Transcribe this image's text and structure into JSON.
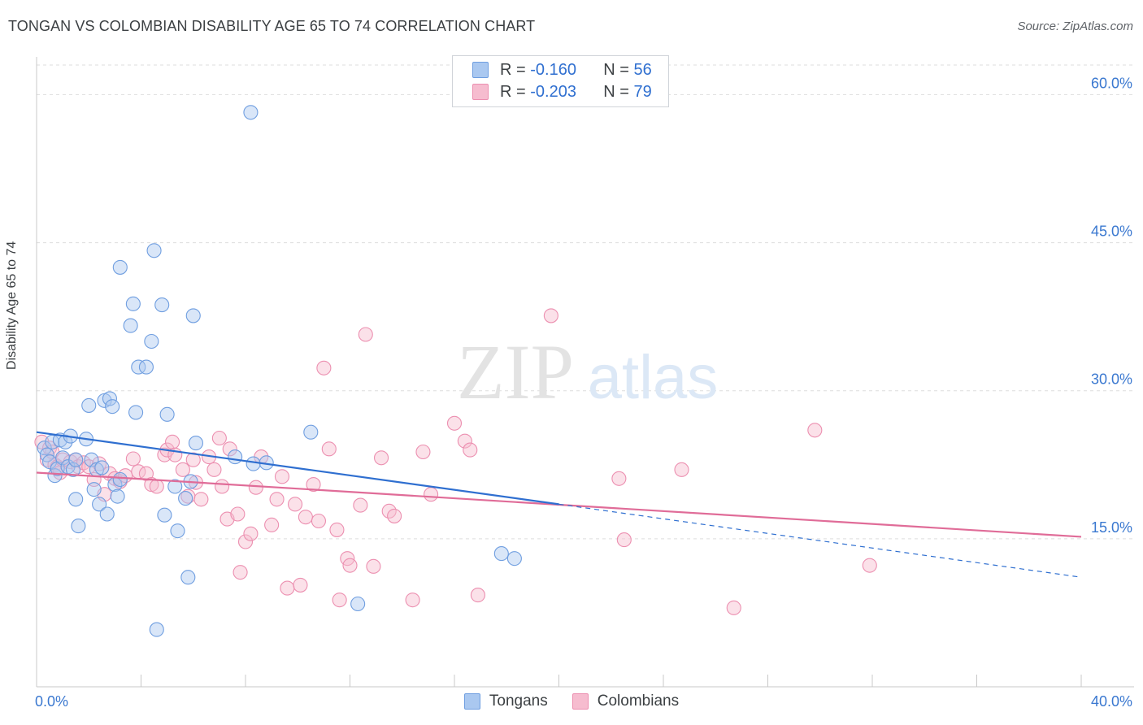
{
  "header": {
    "title": "TONGAN VS COLOMBIAN DISABILITY AGE 65 TO 74 CORRELATION CHART",
    "source": "Source: ZipAtlas.com"
  },
  "watermark": {
    "part1": "ZIP",
    "part2": "atlas"
  },
  "legend": {
    "rows": [
      {
        "r_label": "R =",
        "r_value": "-0.160",
        "n_label": "N =",
        "n_value": "56"
      },
      {
        "r_label": "R =",
        "r_value": "-0.203",
        "n_label": "N =",
        "n_value": "79"
      }
    ]
  },
  "colors": {
    "tongan_fill": "#aac8f0",
    "tongan_stroke": "#6f9ee0",
    "tongan_line": "#2f6fd0",
    "colombian_fill": "#f6bccf",
    "colombian_stroke": "#ec8fb0",
    "colombian_line": "#e06c98",
    "axis_tick_text": "#3a78d0",
    "grid": "#dddddd"
  },
  "chart_data": {
    "type": "scatter",
    "title": "TONGAN VS COLOMBIAN DISABILITY AGE 65 TO 74 CORRELATION CHART",
    "xlabel": "",
    "ylabel": "Disability Age 65 to 74",
    "xlim": [
      0,
      40
    ],
    "ylim": [
      0,
      63
    ],
    "x_tick_labels": [
      {
        "value": 0,
        "label": "0.0%"
      },
      {
        "value": 40,
        "label": "40.0%"
      }
    ],
    "y_tick_labels": [
      {
        "value": 15,
        "label": "15.0%"
      },
      {
        "value": 30,
        "label": "30.0%"
      },
      {
        "value": 45,
        "label": "45.0%"
      },
      {
        "value": 60,
        "label": "60.0%"
      }
    ],
    "grid": true,
    "legend_position": "top-center",
    "series": [
      {
        "name": "Tongans",
        "points": [
          [
            0.3,
            24.2
          ],
          [
            0.4,
            23.5
          ],
          [
            0.5,
            22.8
          ],
          [
            0.6,
            24.8
          ],
          [
            0.7,
            21.4
          ],
          [
            0.8,
            22.1
          ],
          [
            0.9,
            25.0
          ],
          [
            1.0,
            23.2
          ],
          [
            1.1,
            24.8
          ],
          [
            1.2,
            22.3
          ],
          [
            1.3,
            25.4
          ],
          [
            1.4,
            22.0
          ],
          [
            1.5,
            19.0
          ],
          [
            1.6,
            16.3
          ],
          [
            1.5,
            23.0
          ],
          [
            1.9,
            25.1
          ],
          [
            2.0,
            28.5
          ],
          [
            2.1,
            23.0
          ],
          [
            2.2,
            20.0
          ],
          [
            2.3,
            22.0
          ],
          [
            2.4,
            18.5
          ],
          [
            2.5,
            22.2
          ],
          [
            2.6,
            29.0
          ],
          [
            2.7,
            17.5
          ],
          [
            2.8,
            29.2
          ],
          [
            2.9,
            28.4
          ],
          [
            3.0,
            20.5
          ],
          [
            3.1,
            19.3
          ],
          [
            3.2,
            21.0
          ],
          [
            3.2,
            42.5
          ],
          [
            3.6,
            36.6
          ],
          [
            3.7,
            38.8
          ],
          [
            3.8,
            27.8
          ],
          [
            3.9,
            32.4
          ],
          [
            4.2,
            32.4
          ],
          [
            4.4,
            35.0
          ],
          [
            4.5,
            44.2
          ],
          [
            4.6,
            5.8
          ],
          [
            4.8,
            38.7
          ],
          [
            4.9,
            17.4
          ],
          [
            5.0,
            27.6
          ],
          [
            5.3,
            20.3
          ],
          [
            5.4,
            15.8
          ],
          [
            5.7,
            19.1
          ],
          [
            5.8,
            11.1
          ],
          [
            5.9,
            20.8
          ],
          [
            6.0,
            37.6
          ],
          [
            6.1,
            24.7
          ],
          [
            7.6,
            23.3
          ],
          [
            8.2,
            58.2
          ],
          [
            8.3,
            22.6
          ],
          [
            8.8,
            22.7
          ],
          [
            10.5,
            25.8
          ],
          [
            12.3,
            8.4
          ],
          [
            17.8,
            13.5
          ],
          [
            18.3,
            13.0
          ]
        ],
        "trend": {
          "x": [
            0,
            20
          ],
          "y": [
            25.8,
            18.5
          ]
        },
        "trend_extension": {
          "x": [
            20,
            40
          ],
          "y": [
            18.5,
            11.1
          ]
        }
      },
      {
        "name": "Colombians",
        "points": [
          [
            0.2,
            24.8
          ],
          [
            0.4,
            23.0
          ],
          [
            0.5,
            24.2
          ],
          [
            0.6,
            23.8
          ],
          [
            0.7,
            22.5
          ],
          [
            0.8,
            22.3
          ],
          [
            0.9,
            21.7
          ],
          [
            1.0,
            23.0
          ],
          [
            1.3,
            22.8
          ],
          [
            1.5,
            23.0
          ],
          [
            1.6,
            22.3
          ],
          [
            1.8,
            22.7
          ],
          [
            2.0,
            22.3
          ],
          [
            2.2,
            21.0
          ],
          [
            2.4,
            22.6
          ],
          [
            2.6,
            19.5
          ],
          [
            2.8,
            21.6
          ],
          [
            3.0,
            21.1
          ],
          [
            3.2,
            20.8
          ],
          [
            3.4,
            21.4
          ],
          [
            3.7,
            23.1
          ],
          [
            3.9,
            21.8
          ],
          [
            4.2,
            21.6
          ],
          [
            4.4,
            20.5
          ],
          [
            4.6,
            20.3
          ],
          [
            4.9,
            23.5
          ],
          [
            5.0,
            24.0
          ],
          [
            5.2,
            24.8
          ],
          [
            5.3,
            23.5
          ],
          [
            5.6,
            22.0
          ],
          [
            5.8,
            19.3
          ],
          [
            6.0,
            23.0
          ],
          [
            6.1,
            20.7
          ],
          [
            6.3,
            19.0
          ],
          [
            6.6,
            23.3
          ],
          [
            6.8,
            22.0
          ],
          [
            7.0,
            25.2
          ],
          [
            7.1,
            20.3
          ],
          [
            7.3,
            17.0
          ],
          [
            7.4,
            24.1
          ],
          [
            7.7,
            17.5
          ],
          [
            7.8,
            11.6
          ],
          [
            8.0,
            14.7
          ],
          [
            8.2,
            15.5
          ],
          [
            8.4,
            20.2
          ],
          [
            8.6,
            23.3
          ],
          [
            9.0,
            16.4
          ],
          [
            9.2,
            19.0
          ],
          [
            9.4,
            21.3
          ],
          [
            9.6,
            10.0
          ],
          [
            9.9,
            18.5
          ],
          [
            10.1,
            10.3
          ],
          [
            10.3,
            17.2
          ],
          [
            10.6,
            20.5
          ],
          [
            10.8,
            16.8
          ],
          [
            11.0,
            32.3
          ],
          [
            11.2,
            24.1
          ],
          [
            11.5,
            15.9
          ],
          [
            11.6,
            8.8
          ],
          [
            11.9,
            13.0
          ],
          [
            12.0,
            12.3
          ],
          [
            12.4,
            18.4
          ],
          [
            12.6,
            35.7
          ],
          [
            12.9,
            12.2
          ],
          [
            13.2,
            23.2
          ],
          [
            13.5,
            17.8
          ],
          [
            13.7,
            17.3
          ],
          [
            14.4,
            8.8
          ],
          [
            14.8,
            23.8
          ],
          [
            15.1,
            19.5
          ],
          [
            16.0,
            26.7
          ],
          [
            16.4,
            24.9
          ],
          [
            16.6,
            24.0
          ],
          [
            16.9,
            9.3
          ],
          [
            19.7,
            37.6
          ],
          [
            22.3,
            21.1
          ],
          [
            22.5,
            14.9
          ],
          [
            24.7,
            22.0
          ],
          [
            26.7,
            8.0
          ],
          [
            29.8,
            26.0
          ],
          [
            31.9,
            12.3
          ]
        ],
        "trend": {
          "x": [
            0,
            40
          ],
          "y": [
            21.7,
            15.2
          ]
        }
      }
    ]
  },
  "bottom_legend": {
    "items": [
      "Tongans",
      "Colombians"
    ]
  }
}
